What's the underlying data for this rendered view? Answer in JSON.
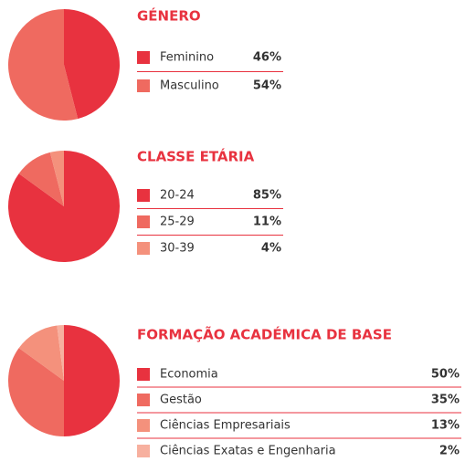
{
  "chart_data": [
    {
      "type": "pie",
      "title": "GÉNERO",
      "categories": [
        "Feminino",
        "Masculino"
      ],
      "values": [
        46,
        54
      ],
      "value_labels": [
        "46%",
        "54%"
      ],
      "colors": [
        "#e8323f",
        "#ef6a60"
      ]
    },
    {
      "type": "pie",
      "title": "CLASSE ETÁRIA",
      "categories": [
        "20-24",
        "25-29",
        "30-39"
      ],
      "values": [
        85,
        11,
        4
      ],
      "value_labels": [
        "85%",
        "11%",
        "4%"
      ],
      "colors": [
        "#e8323f",
        "#ef6a60",
        "#f4917c"
      ]
    },
    {
      "type": "pie",
      "title": "FORMAÇÃO ACADÉMICA DE BASE",
      "categories": [
        "Economia",
        "Gestão",
        "Ciências Empresariais",
        "Ciências Exatas e Engenharia"
      ],
      "values": [
        50,
        35,
        13,
        2
      ],
      "value_labels": [
        "50%",
        "35%",
        "13%",
        "2%"
      ],
      "colors": [
        "#e8323f",
        "#ef6a60",
        "#f4917c",
        "#f7b09f"
      ]
    }
  ]
}
